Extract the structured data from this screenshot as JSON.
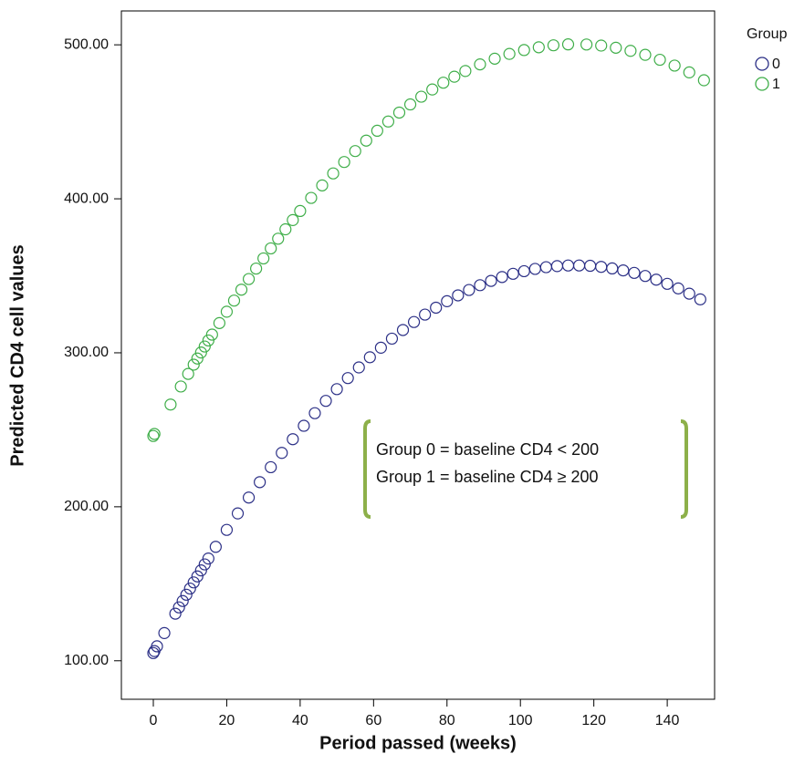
{
  "chart_data": {
    "type": "scatter",
    "x_label": "Period passed (weeks)",
    "y_label": "Predicted CD4 cell values",
    "legend_title": "Group",
    "annotations": [
      "Group 0 = baseline CD4 < 200",
      "Group 1 = baseline CD4 ≥ 200"
    ],
    "xlim": [
      -8.7,
      152.9
    ],
    "ylim": [
      75,
      522
    ],
    "xticks": [
      0,
      20,
      40,
      60,
      80,
      100,
      120,
      140
    ],
    "yticks": [
      {
        "value": 100,
        "label": "100.00"
      },
      {
        "value": 200,
        "label": "200.00"
      },
      {
        "value": 300,
        "label": "300.00"
      },
      {
        "value": 400,
        "label": "400.00"
      },
      {
        "value": 500,
        "label": "500.00"
      }
    ],
    "series": [
      {
        "name": "0",
        "color": "#2b2f86",
        "x": [
          0,
          0.3,
          1,
          3,
          6,
          7,
          8,
          9,
          10,
          11,
          12,
          13,
          14,
          15,
          17,
          20,
          23,
          26,
          29,
          32,
          35,
          38,
          41,
          44,
          47,
          50,
          53,
          56,
          59,
          62,
          65,
          68,
          71,
          74,
          77,
          80,
          83,
          86,
          89,
          92,
          95,
          98,
          101,
          104,
          107,
          110,
          113,
          116,
          119,
          122,
          125,
          128,
          131,
          134,
          137,
          140,
          143,
          146,
          149
        ],
        "values": [
          105,
          106.3,
          109.4,
          118.0,
          130.6,
          134.7,
          138.8,
          142.9,
          146.9,
          150.9,
          154.8,
          158.7,
          162.6,
          166.4,
          174.0,
          185.0,
          195.7,
          206.0,
          216.0,
          225.7,
          235.0,
          243.9,
          252.6,
          260.8,
          268.8,
          276.4,
          283.6,
          290.5,
          297.1,
          303.3,
          309.2,
          314.8,
          320.0,
          324.8,
          329.3,
          333.5,
          337.3,
          340.8,
          343.9,
          346.7,
          349.2,
          351.3,
          353.0,
          354.5,
          355.6,
          356.3,
          356.7,
          356.7,
          356.5,
          355.8,
          354.8,
          353.5,
          351.9,
          349.9,
          347.5,
          344.8,
          341.8,
          338.4,
          334.7
        ]
      },
      {
        "name": "1",
        "color": "#3fae49",
        "x": [
          0,
          0.3,
          4.7,
          7.5,
          9.5,
          11,
          12,
          13,
          14,
          15,
          16,
          18,
          20,
          22,
          24,
          26,
          28,
          30,
          32,
          34,
          36,
          38,
          40,
          43,
          46,
          49,
          52,
          55,
          58,
          61,
          64,
          67,
          70,
          73,
          76,
          79,
          82,
          85,
          89,
          93,
          97,
          101,
          105,
          109,
          113,
          118,
          122,
          126,
          130,
          134,
          138,
          142,
          146,
          150
        ],
        "values": [
          246,
          247.3,
          266.4,
          278.1,
          286.3,
          292.3,
          296.3,
          300.2,
          304.1,
          308.0,
          311.8,
          319.3,
          326.7,
          333.9,
          341.0,
          347.9,
          354.7,
          361.3,
          367.8,
          374.1,
          380.2,
          386.2,
          392.1,
          400.6,
          408.7,
          416.5,
          423.9,
          431.0,
          437.8,
          444.2,
          450.2,
          456.0,
          461.3,
          466.3,
          471.0,
          475.4,
          479.3,
          483.0,
          487.3,
          491.0,
          494.1,
          496.6,
          498.4,
          499.7,
          500.3,
          500.2,
          499.5,
          498.1,
          496.1,
          493.5,
          490.3,
          486.5,
          482.1,
          477.0
        ]
      }
    ]
  }
}
